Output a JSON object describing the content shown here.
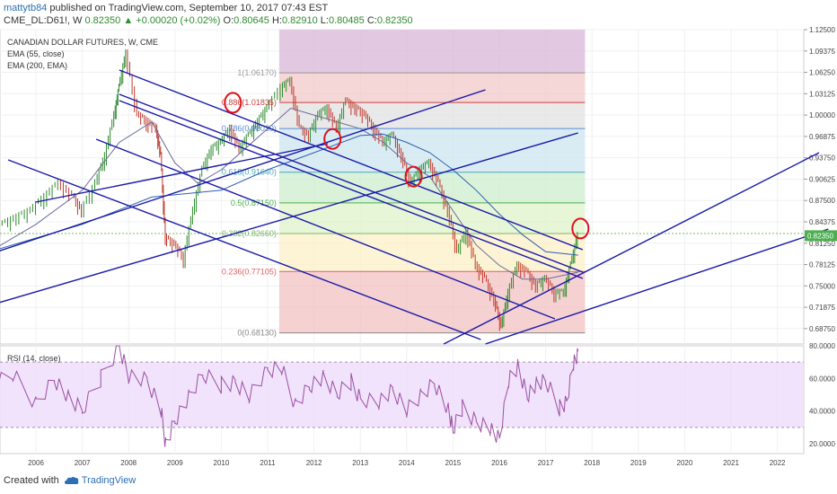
{
  "header": {
    "author": "mattytb84",
    "published_text": "published on TradingView.com, September 10, 2017 07:43 EST",
    "symbol": "CME_DL:D61!, W",
    "last": "0.82350",
    "change": "+0.00020 (+0.02%)",
    "open_label": "O:",
    "open": "0.80645",
    "high_label": "H:",
    "high": "0.82910",
    "low_label": "L:",
    "low": "0.80485",
    "close_label": "C:",
    "close": "0.82350"
  },
  "legend": {
    "title": "CANADIAN DOLLAR FUTURES, W, CME",
    "ema1": "EMA (55, close)",
    "ema2": "EMA (200, EMA)"
  },
  "rsi": {
    "label": "RSI (14, close)"
  },
  "footer": {
    "created_with": "Created with",
    "brand": "TradingView"
  },
  "colors": {
    "up": "#2e8b2e",
    "down": "#c0392b",
    "channel": "#1a1aa8",
    "marker": "#e0101a",
    "rsi": "#9c4fa3",
    "rsi_band": "#ecdcfa",
    "ema55": "#6a6a9a",
    "ema200": "#2d5fb0"
  },
  "chart_data": [
    {
      "type": "line",
      "title": "CANADIAN DOLLAR FUTURES, W, CME",
      "x_ticks": [
        "2006",
        "2007",
        "2008",
        "2009",
        "2010",
        "2011",
        "2012",
        "2013",
        "2014",
        "2015",
        "2016",
        "2017",
        "2018",
        "2019",
        "2020",
        "2021",
        "2022"
      ],
      "y_ticks": [
        "1.12500",
        "1.09375",
        "1.06250",
        "1.03125",
        "1.00000",
        "0.96875",
        "0.93750",
        "0.90625",
        "0.87500",
        "0.84375",
        "0.81250",
        "0.78125",
        "0.75000",
        "0.71875",
        "0.68750"
      ],
      "ylim": [
        0.665,
        1.125
      ],
      "last_price_label": "0.82350",
      "series": [
        {
          "values": [
            [
              2005.0,
              0.82
            ],
            [
              2005.3,
              0.84
            ],
            [
              2005.6,
              0.85
            ],
            [
              2005.9,
              0.86
            ],
            [
              2006.2,
              0.88
            ],
            [
              2006.5,
              0.9
            ],
            [
              2006.8,
              0.88
            ],
            [
              2007.0,
              0.86
            ],
            [
              2007.3,
              0.9
            ],
            [
              2007.5,
              0.94
            ],
            [
              2007.7,
              1.0
            ],
            [
              2007.8,
              1.04
            ],
            [
              2007.95,
              1.09
            ],
            [
              2008.2,
              1.0
            ],
            [
              2008.4,
              0.99
            ],
            [
              2008.6,
              0.98
            ],
            [
              2008.7,
              0.94
            ],
            [
              2008.8,
              0.82
            ],
            [
              2009.0,
              0.81
            ],
            [
              2009.2,
              0.79
            ],
            [
              2009.4,
              0.86
            ],
            [
              2009.6,
              0.92
            ],
            [
              2009.8,
              0.95
            ],
            [
              2010.0,
              0.96
            ],
            [
              2010.2,
              0.98
            ],
            [
              2010.4,
              0.95
            ],
            [
              2010.6,
              0.97
            ],
            [
              2010.8,
              0.99
            ],
            [
              2011.0,
              1.01
            ],
            [
              2011.3,
              1.04
            ],
            [
              2011.5,
              1.05
            ],
            [
              2011.7,
              0.98
            ],
            [
              2011.9,
              0.97
            ],
            [
              2012.1,
              1.0
            ],
            [
              2012.3,
              1.01
            ],
            [
              2012.5,
              0.98
            ],
            [
              2012.7,
              1.02
            ],
            [
              2012.9,
              1.01
            ],
            [
              2013.1,
              1.0
            ],
            [
              2013.3,
              0.98
            ],
            [
              2013.5,
              0.96
            ],
            [
              2013.7,
              0.97
            ],
            [
              2013.9,
              0.94
            ],
            [
              2014.1,
              0.9
            ],
            [
              2014.3,
              0.92
            ],
            [
              2014.5,
              0.93
            ],
            [
              2014.7,
              0.9
            ],
            [
              2014.9,
              0.86
            ],
            [
              2015.1,
              0.8
            ],
            [
              2015.3,
              0.83
            ],
            [
              2015.5,
              0.78
            ],
            [
              2015.7,
              0.76
            ],
            [
              2015.9,
              0.73
            ],
            [
              2016.05,
              0.69
            ],
            [
              2016.2,
              0.74
            ],
            [
              2016.4,
              0.78
            ],
            [
              2016.6,
              0.77
            ],
            [
              2016.8,
              0.75
            ],
            [
              2017.0,
              0.76
            ],
            [
              2017.2,
              0.74
            ],
            [
              2017.4,
              0.74
            ],
            [
              2017.55,
              0.78
            ],
            [
              2017.7,
              0.823
            ]
          ]
        },
        {
          "name": "EMA (55, close)",
          "values": [
            [
              2005.0,
              0.8
            ],
            [
              2006.0,
              0.84
            ],
            [
              2007.0,
              0.89
            ],
            [
              2007.8,
              0.96
            ],
            [
              2008.5,
              0.99
            ],
            [
              2009.0,
              0.93
            ],
            [
              2009.5,
              0.9
            ],
            [
              2010.0,
              0.92
            ],
            [
              2010.5,
              0.95
            ],
            [
              2011.0,
              0.98
            ],
            [
              2011.5,
              1.01
            ],
            [
              2012.0,
              1.0
            ],
            [
              2012.5,
              0.99
            ],
            [
              2013.0,
              0.98
            ],
            [
              2013.5,
              0.96
            ],
            [
              2014.0,
              0.93
            ],
            [
              2014.5,
              0.91
            ],
            [
              2015.0,
              0.86
            ],
            [
              2015.5,
              0.81
            ],
            [
              2016.0,
              0.78
            ],
            [
              2016.5,
              0.76
            ],
            [
              2017.0,
              0.76
            ],
            [
              2017.7,
              0.77
            ]
          ]
        },
        {
          "name": "EMA (200, EMA)",
          "values": [
            [
              2005.0,
              0.8
            ],
            [
              2007.0,
              0.84
            ],
            [
              2008.5,
              0.88
            ],
            [
              2010.0,
              0.89
            ],
            [
              2011.0,
              0.92
            ],
            [
              2012.0,
              0.945
            ],
            [
              2013.0,
              0.97
            ],
            [
              2013.5,
              0.972
            ],
            [
              2014.0,
              0.96
            ],
            [
              2014.5,
              0.945
            ],
            [
              2015.0,
              0.92
            ],
            [
              2015.5,
              0.89
            ],
            [
              2016.0,
              0.855
            ],
            [
              2016.5,
              0.825
            ],
            [
              2017.0,
              0.8
            ],
            [
              2017.7,
              0.795
            ]
          ]
        }
      ],
      "fibonacci": [
        {
          "label": "0(0.68130)",
          "value": 0.6813
        },
        {
          "label": "0.236(0.77105)",
          "value": 0.77105
        },
        {
          "label": "0.382(0.82660)",
          "value": 0.8266
        },
        {
          "label": "0.5(0.87150)",
          "value": 0.8715
        },
        {
          "label": "0.618(0.91640)",
          "value": 0.9164
        },
        {
          "label": "0.786(0.98030)",
          "value": 0.9803
        },
        {
          "label": "0.886(1.01835)",
          "value": 1.01835
        },
        {
          "label": "1(1.06170)",
          "value": 1.0617
        }
      ]
    },
    {
      "type": "line",
      "title": "RSI (14, close)",
      "y_ticks": [
        "80.0000",
        "60.0000",
        "40.0000",
        "20.0000"
      ],
      "ylim": [
        14,
        80
      ],
      "series": [
        {
          "values": [
            [
              2005.0,
              55
            ],
            [
              2005.5,
              62
            ],
            [
              2006.0,
              45
            ],
            [
              2006.4,
              60
            ],
            [
              2006.7,
              48
            ],
            [
              2007.0,
              40
            ],
            [
              2007.4,
              60
            ],
            [
              2007.8,
              80
            ],
            [
              2008.0,
              62
            ],
            [
              2008.4,
              58
            ],
            [
              2008.7,
              40
            ],
            [
              2008.8,
              20
            ],
            [
              2009.0,
              35
            ],
            [
              2009.3,
              48
            ],
            [
              2009.6,
              62
            ],
            [
              2010.0,
              56
            ],
            [
              2010.3,
              58
            ],
            [
              2010.6,
              50
            ],
            [
              2011.0,
              64
            ],
            [
              2011.3,
              66
            ],
            [
              2011.6,
              44
            ],
            [
              2011.9,
              56
            ],
            [
              2012.2,
              60
            ],
            [
              2012.5,
              50
            ],
            [
              2012.8,
              58
            ],
            [
              2013.0,
              48
            ],
            [
              2013.4,
              46
            ],
            [
              2013.7,
              52
            ],
            [
              2014.0,
              40
            ],
            [
              2014.3,
              50
            ],
            [
              2014.6,
              58
            ],
            [
              2014.9,
              40
            ],
            [
              2015.0,
              28
            ],
            [
              2015.2,
              42
            ],
            [
              2015.5,
              34
            ],
            [
              2015.8,
              30
            ],
            [
              2016.0,
              22
            ],
            [
              2016.2,
              58
            ],
            [
              2016.4,
              68
            ],
            [
              2016.6,
              50
            ],
            [
              2016.8,
              56
            ],
            [
              2017.0,
              58
            ],
            [
              2017.3,
              42
            ],
            [
              2017.45,
              46
            ],
            [
              2017.6,
              70
            ],
            [
              2017.7,
              74
            ]
          ]
        }
      ]
    }
  ]
}
